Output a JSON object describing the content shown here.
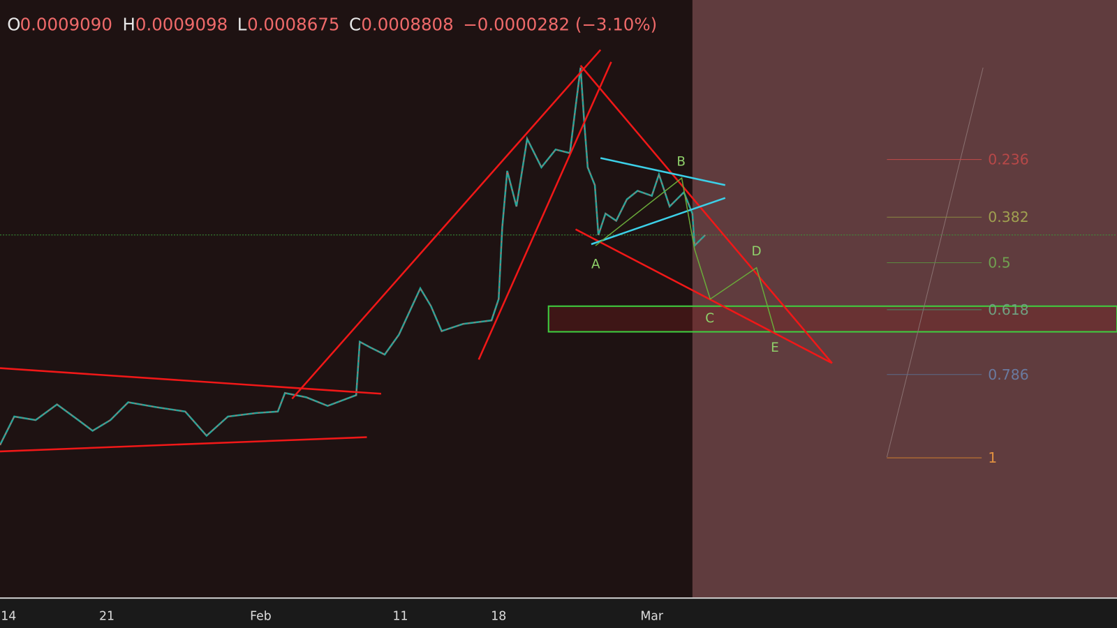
{
  "header": {
    "ohlc": [
      {
        "key": "O",
        "value": "0.0009090"
      },
      {
        "key": "H",
        "value": "0.0009098"
      },
      {
        "key": "L",
        "value": "0.0008675"
      },
      {
        "key": "C",
        "value": "0.0008808"
      }
    ],
    "change": "−0.0000282 (−3.10%)"
  },
  "fib_levels": [
    "0.236",
    "0.382",
    "0.5",
    "0.618",
    "0.786",
    "1"
  ],
  "pattern_points": [
    "A",
    "B",
    "C",
    "D",
    "E"
  ],
  "x_axis": [
    "14",
    "21",
    "Feb",
    "11",
    "18",
    "Mar"
  ]
}
